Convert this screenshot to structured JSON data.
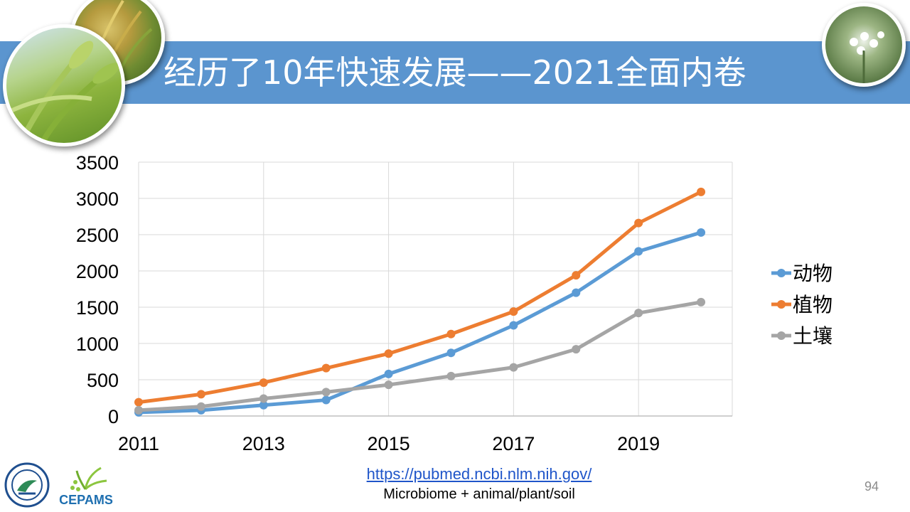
{
  "slide": {
    "title": "经历了10年快速发展——2021全面内卷",
    "page_number": "94",
    "source_link": "https://pubmed.ncbi.nlm.nih.gov/",
    "source_note": "Microbiome + animal/plant/soil",
    "logo_text": "CEPAMS",
    "title_band_color": "#5b95cf"
  },
  "chart_data": {
    "type": "line",
    "title": "",
    "xlabel": "",
    "ylabel": "",
    "x": [
      2011,
      2012,
      2013,
      2014,
      2015,
      2016,
      2017,
      2018,
      2019,
      2020
    ],
    "x_tick_labels": [
      "2011",
      "2013",
      "2015",
      "2017",
      "2019"
    ],
    "y_tick_labels": [
      "0",
      "500",
      "1000",
      "1500",
      "2000",
      "2500",
      "3000",
      "3500"
    ],
    "xlim": [
      2011,
      2020.5
    ],
    "ylim": [
      0,
      3500
    ],
    "grid": true,
    "legend_position": "right",
    "series": [
      {
        "name": "动物",
        "color": "#5b9bd5",
        "values": [
          50,
          80,
          150,
          220,
          580,
          870,
          1250,
          1700,
          2270,
          2530
        ]
      },
      {
        "name": "植物",
        "color": "#ed7d31",
        "values": [
          190,
          300,
          460,
          660,
          860,
          1130,
          1440,
          1940,
          2660,
          3090
        ]
      },
      {
        "name": "土壤",
        "color": "#a5a5a5",
        "values": [
          80,
          130,
          240,
          330,
          430,
          550,
          670,
          920,
          1420,
          1570
        ]
      }
    ]
  }
}
